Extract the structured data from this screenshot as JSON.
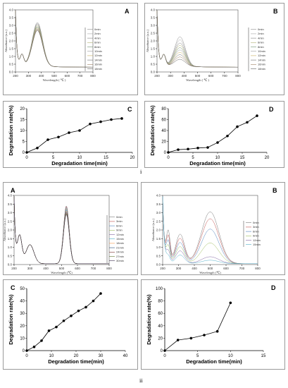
{
  "figure_labels": {
    "i": "i",
    "ii": "ii"
  },
  "chart_data": [
    {
      "id": "iA",
      "panel": "A",
      "type": "line",
      "xlabel": "Wavelength ( ℃ )",
      "ylabel": "Absorbance (a.u.)",
      "xlim": [
        200,
        800
      ],
      "ylim": [
        0,
        4.0
      ],
      "xticks": [
        200,
        300,
        400,
        500,
        600,
        700,
        800
      ],
      "yticks": [
        0.0,
        0.5,
        1.0,
        1.5,
        2.0,
        2.5,
        3.0,
        3.5,
        4.0
      ],
      "legend": [
        "0min",
        "2min",
        "4min",
        "6min",
        "8min",
        "10min",
        "12min",
        "14min",
        "16min",
        "18min"
      ],
      "peak_x": 370,
      "peak_values": [
        2.82,
        2.75,
        2.7,
        2.62,
        2.55,
        2.5,
        2.45,
        2.4,
        2.35,
        2.3
      ]
    },
    {
      "id": "iB",
      "panel": "B",
      "type": "line",
      "xlabel": "Wavelength ( ℃ )",
      "ylabel": "Absorbance (a.u.)",
      "xlim": [
        200,
        800
      ],
      "ylim": [
        0,
        4.0
      ],
      "xticks": [
        200,
        300,
        400,
        500,
        600,
        700,
        800
      ],
      "yticks": [
        0.0,
        0.5,
        1.0,
        1.5,
        2.0,
        2.5,
        3.0,
        3.5,
        4.0
      ],
      "legend": [
        "0min",
        "2min",
        "4min",
        "6min",
        "8min",
        "10min",
        "12min",
        "14min",
        "16min",
        "18min"
      ],
      "peak_x": 370,
      "peak_values": [
        1.9,
        1.7,
        1.5,
        1.35,
        1.2,
        1.05,
        0.9,
        0.75,
        0.6,
        0.45
      ]
    },
    {
      "id": "iC",
      "panel": "C",
      "type": "line",
      "xlabel": "Degradation time(min)",
      "ylabel": "Degradation rate(%)",
      "xlim": [
        0,
        20
      ],
      "ylim": [
        0,
        20
      ],
      "xticks": [
        0,
        5,
        10,
        15,
        20
      ],
      "yticks": [
        0,
        5,
        10,
        15,
        20
      ],
      "x": [
        0,
        2,
        4,
        6,
        8,
        10,
        12,
        14,
        16,
        18
      ],
      "y": [
        0,
        2,
        5.8,
        7,
        9,
        10,
        13,
        14,
        15,
        15.5
      ]
    },
    {
      "id": "iD",
      "panel": "D",
      "type": "line",
      "xlabel": "Degradation time(min)",
      "ylabel": "Degradation rate(%)",
      "xlim": [
        0,
        20
      ],
      "ylim": [
        0,
        80
      ],
      "xticks": [
        0,
        5,
        10,
        15,
        20
      ],
      "yticks": [
        0,
        20,
        40,
        60,
        80
      ],
      "x": [
        0,
        2,
        4,
        6,
        8,
        10,
        12,
        14,
        16,
        18
      ],
      "y": [
        0,
        5,
        6,
        8,
        9,
        18,
        30,
        47,
        55,
        67
      ]
    },
    {
      "id": "iiA",
      "panel": "A",
      "type": "line",
      "xlabel": "Wavelength (℃)",
      "ylabel": "Absorbance (a.u.)",
      "xlim": [
        200,
        800
      ],
      "ylim": [
        0,
        4.0
      ],
      "xticks": [
        200,
        300,
        400,
        500,
        600,
        700,
        800
      ],
      "yticks": [
        0.0,
        0.5,
        1.0,
        1.5,
        2.0,
        2.5,
        3.0,
        3.5,
        4.0
      ],
      "legend": [
        "0min",
        "3min",
        "6min",
        "9min",
        "12min",
        "15min",
        "18min",
        "21min",
        "24min",
        "27min",
        "30min"
      ],
      "peak_x": 530,
      "peak_values": [
        3.35,
        3.3,
        3.25,
        3.2,
        3.15,
        3.1,
        3.05,
        3.0,
        2.95,
        2.9,
        2.85
      ]
    },
    {
      "id": "iiB",
      "panel": "B",
      "type": "line",
      "xlabel": "Wavelength (℃)",
      "ylabel": "Absorbance (a.u.)",
      "xlim": [
        200,
        800
      ],
      "ylim": [
        0,
        4.0
      ],
      "xticks": [
        200,
        300,
        400,
        500,
        600,
        700,
        800
      ],
      "yticks": [
        0.0,
        0.5,
        1.0,
        1.5,
        2.0,
        2.5,
        3.0,
        3.5,
        4.0
      ],
      "legend": [
        "0min",
        "3min",
        "6min",
        "9min",
        "12min",
        "15min"
      ],
      "peak_x": 500,
      "peak_values": [
        3.0,
        2.6,
        2.0,
        1.2,
        0.4,
        0.2
      ]
    },
    {
      "id": "iiC",
      "panel": "C",
      "type": "line",
      "xlabel": "Degradation time(min)",
      "ylabel": "Degradation rate(%)",
      "xlim": [
        0,
        40
      ],
      "ylim": [
        0,
        50
      ],
      "xticks": [
        0,
        10,
        20,
        30,
        40
      ],
      "yticks": [
        0,
        10,
        20,
        30,
        40,
        50
      ],
      "x": [
        0,
        3,
        6,
        9,
        12,
        15,
        18,
        21,
        24,
        27,
        30
      ],
      "y": [
        0,
        3,
        8,
        16,
        19,
        24,
        28,
        32,
        35,
        40,
        46
      ]
    },
    {
      "id": "iiD",
      "panel": "D",
      "type": "line",
      "xlabel": "Degradation time(min)",
      "ylabel": "Degradation rate(%)",
      "xlim": [
        0,
        15
      ],
      "ylim": [
        0,
        100
      ],
      "xticks": [
        0,
        5,
        10,
        15
      ],
      "yticks": [
        0,
        20,
        40,
        60,
        80,
        100
      ],
      "x": [
        0,
        2,
        4,
        6,
        8,
        10
      ],
      "y": [
        0,
        17,
        20,
        25,
        31,
        77
      ]
    }
  ]
}
